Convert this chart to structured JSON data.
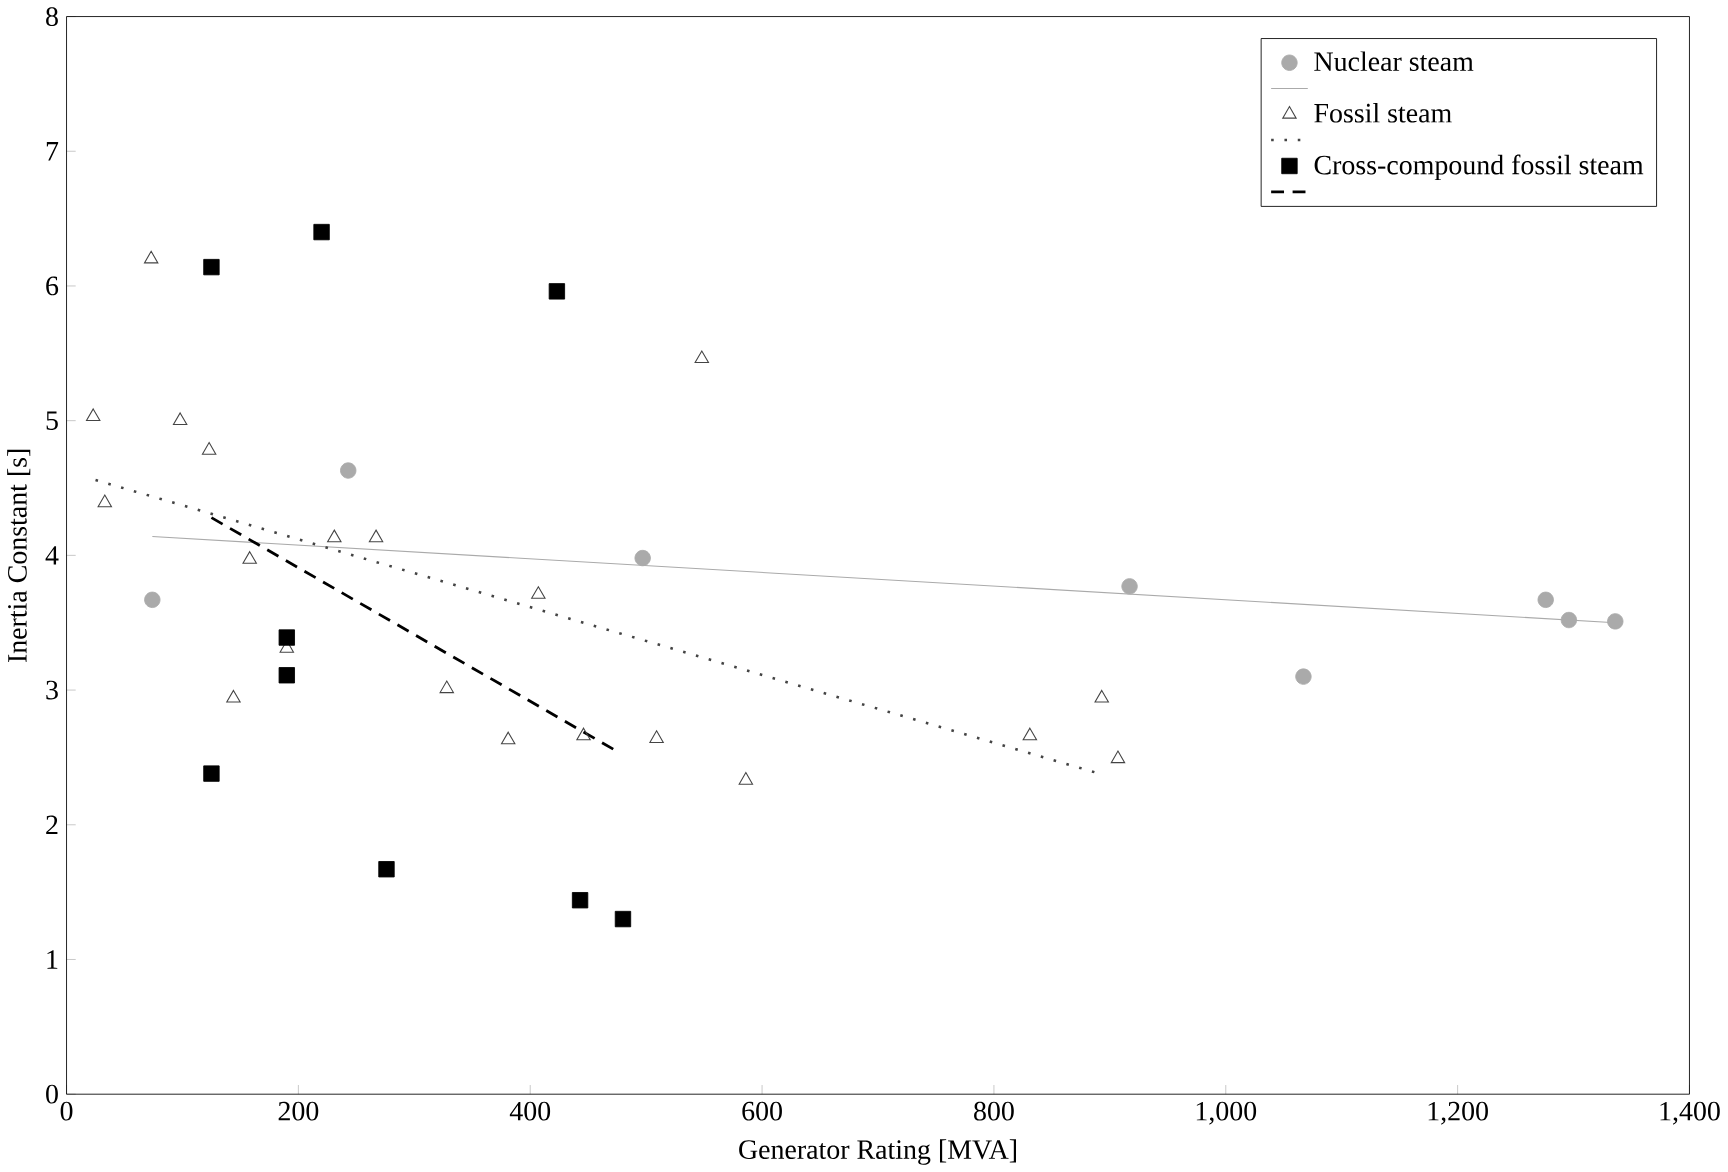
{
  "chart_data": {
    "type": "scatter",
    "xlabel": "Generator Rating [MVA]",
    "ylabel": "Inertia Constant [s]",
    "xlim": [
      0,
      1400
    ],
    "ylim": [
      0,
      8
    ],
    "xticks": [
      0,
      200,
      400,
      600,
      800,
      {
        "value": 1000,
        "label": "1,000"
      },
      {
        "value": 1200,
        "label": "1,200"
      },
      {
        "value": 1400,
        "label": "1,400"
      }
    ],
    "yticks": [
      0,
      1,
      2,
      3,
      4,
      5,
      6,
      7,
      8
    ],
    "grid": false,
    "legend": "top right",
    "series": [
      {
        "name": "Nuclear steam",
        "marker": "circle",
        "color": "#aaaaaa",
        "x": [
          74,
          243,
          497,
          917,
          1067,
          1276,
          1296,
          1336
        ],
        "values": [
          3.67,
          4.63,
          3.98,
          3.77,
          3.1,
          3.67,
          3.52,
          3.51
        ]
      },
      {
        "type": "line",
        "marker": "none",
        "line_style": "solid",
        "color": "#aaaaaa",
        "x": [
          74,
          1336
        ],
        "values": [
          4.14,
          3.5
        ]
      },
      {
        "name": "Fossil steam",
        "marker": "triangle",
        "color": "#444444",
        "x": [
          73,
          23,
          98,
          123,
          33,
          231,
          267,
          158,
          407,
          190,
          144,
          328,
          381,
          446,
          509,
          548,
          586,
          831,
          893,
          907
        ],
        "values": [
          6.2,
          5.03,
          5.0,
          4.78,
          4.39,
          4.13,
          4.13,
          3.97,
          3.71,
          3.31,
          2.94,
          3.01,
          2.63,
          2.66,
          2.64,
          5.46,
          2.33,
          2.66,
          2.94,
          2.49
        ]
      },
      {
        "type": "line",
        "marker": "none",
        "line_style": "dotted",
        "color": "#444444",
        "x": [
          25,
          891
        ],
        "values": [
          4.56,
          2.38
        ]
      },
      {
        "name": "Cross-compound fossil steam",
        "marker": "square",
        "color": "#000000",
        "x": [
          220,
          125,
          423,
          190,
          190,
          125,
          276,
          443,
          480
        ],
        "values": [
          6.4,
          6.14,
          5.96,
          3.39,
          3.11,
          2.38,
          1.67,
          1.44,
          1.3
        ]
      },
      {
        "type": "line",
        "marker": "none",
        "line_style": "dashed",
        "color": "#000000",
        "x": [
          125,
          478
        ],
        "values": [
          4.28,
          2.53
        ]
      }
    ]
  }
}
